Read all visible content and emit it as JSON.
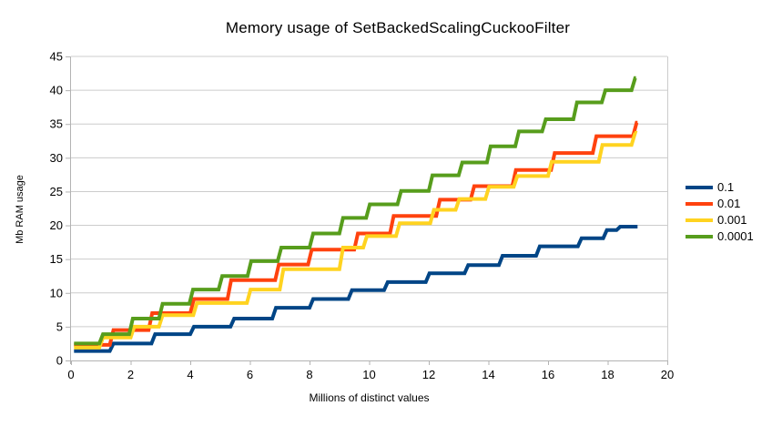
{
  "chart_data": {
    "type": "line",
    "step": true,
    "title": "Memory usage of SetBackedScalingCuckooFilter",
    "xlabel": "Millions of distinct values",
    "ylabel": "Mb RAM usage",
    "xlim": [
      0,
      20
    ],
    "ylim": [
      0,
      45
    ],
    "x_ticks": [
      0,
      2,
      4,
      6,
      8,
      10,
      12,
      14,
      16,
      18,
      20
    ],
    "y_ticks": [
      0,
      5,
      10,
      15,
      20,
      25,
      30,
      35,
      40,
      45
    ],
    "grid": "horizontal",
    "legend_position": "right",
    "colors": {
      "background": "#ffffff",
      "grid": "#cccccc",
      "axis": "#b3b3b3",
      "text": "#000000"
    },
    "series": [
      {
        "name": "0.1",
        "color": "#004586",
        "x_end": 19.0,
        "points": [
          [
            0.1,
            1.4
          ],
          [
            1.3,
            2.5
          ],
          [
            2.7,
            3.9
          ],
          [
            4.0,
            5.0
          ],
          [
            5.35,
            6.2
          ],
          [
            6.75,
            7.8
          ],
          [
            8.0,
            9.1
          ],
          [
            9.3,
            10.4
          ],
          [
            10.5,
            11.6
          ],
          [
            11.9,
            12.9
          ],
          [
            13.2,
            14.1
          ],
          [
            14.35,
            15.5
          ],
          [
            15.6,
            16.9
          ],
          [
            17.0,
            18.1
          ],
          [
            17.85,
            19.3
          ],
          [
            18.3,
            19.8
          ]
        ]
      },
      {
        "name": "0.01",
        "color": "#ff420e",
        "x_end": 19.0,
        "points": [
          [
            0.1,
            2.3
          ],
          [
            1.3,
            4.5
          ],
          [
            2.6,
            7.0
          ],
          [
            4.0,
            9.1
          ],
          [
            5.25,
            11.9
          ],
          [
            6.85,
            14.2
          ],
          [
            7.95,
            16.4
          ],
          [
            9.5,
            18.8
          ],
          [
            10.7,
            21.4
          ],
          [
            12.25,
            23.8
          ],
          [
            13.4,
            25.8
          ],
          [
            14.8,
            28.2
          ],
          [
            16.1,
            30.7
          ],
          [
            17.5,
            33.2
          ],
          [
            18.85,
            35.2
          ]
        ]
      },
      {
        "name": "0.001",
        "color": "#ffd320",
        "x_end": 18.9,
        "points": [
          [
            0.1,
            1.9
          ],
          [
            0.95,
            3.4
          ],
          [
            2.0,
            5.0
          ],
          [
            2.95,
            6.7
          ],
          [
            4.1,
            8.5
          ],
          [
            5.9,
            10.5
          ],
          [
            7.0,
            13.5
          ],
          [
            9.0,
            16.7
          ],
          [
            9.8,
            18.4
          ],
          [
            10.9,
            20.3
          ],
          [
            12.05,
            22.3
          ],
          [
            12.9,
            23.9
          ],
          [
            13.9,
            25.7
          ],
          [
            14.85,
            27.3
          ],
          [
            16.0,
            29.4
          ],
          [
            17.7,
            31.9
          ],
          [
            18.8,
            33.7
          ]
        ]
      },
      {
        "name": "0.0001",
        "color": "#579d1c",
        "x_end": 18.95,
        "points": [
          [
            0.1,
            2.5
          ],
          [
            0.95,
            3.9
          ],
          [
            1.95,
            6.2
          ],
          [
            2.95,
            8.4
          ],
          [
            3.97,
            10.5
          ],
          [
            4.95,
            12.5
          ],
          [
            5.92,
            14.7
          ],
          [
            6.93,
            16.7
          ],
          [
            8.0,
            18.8
          ],
          [
            9.0,
            21.1
          ],
          [
            9.9,
            23.1
          ],
          [
            10.95,
            25.1
          ],
          [
            12.0,
            27.4
          ],
          [
            13.0,
            29.3
          ],
          [
            13.95,
            31.7
          ],
          [
            14.9,
            33.9
          ],
          [
            15.8,
            35.7
          ],
          [
            16.85,
            38.2
          ],
          [
            17.8,
            40.0
          ],
          [
            18.8,
            41.8
          ]
        ]
      }
    ]
  }
}
